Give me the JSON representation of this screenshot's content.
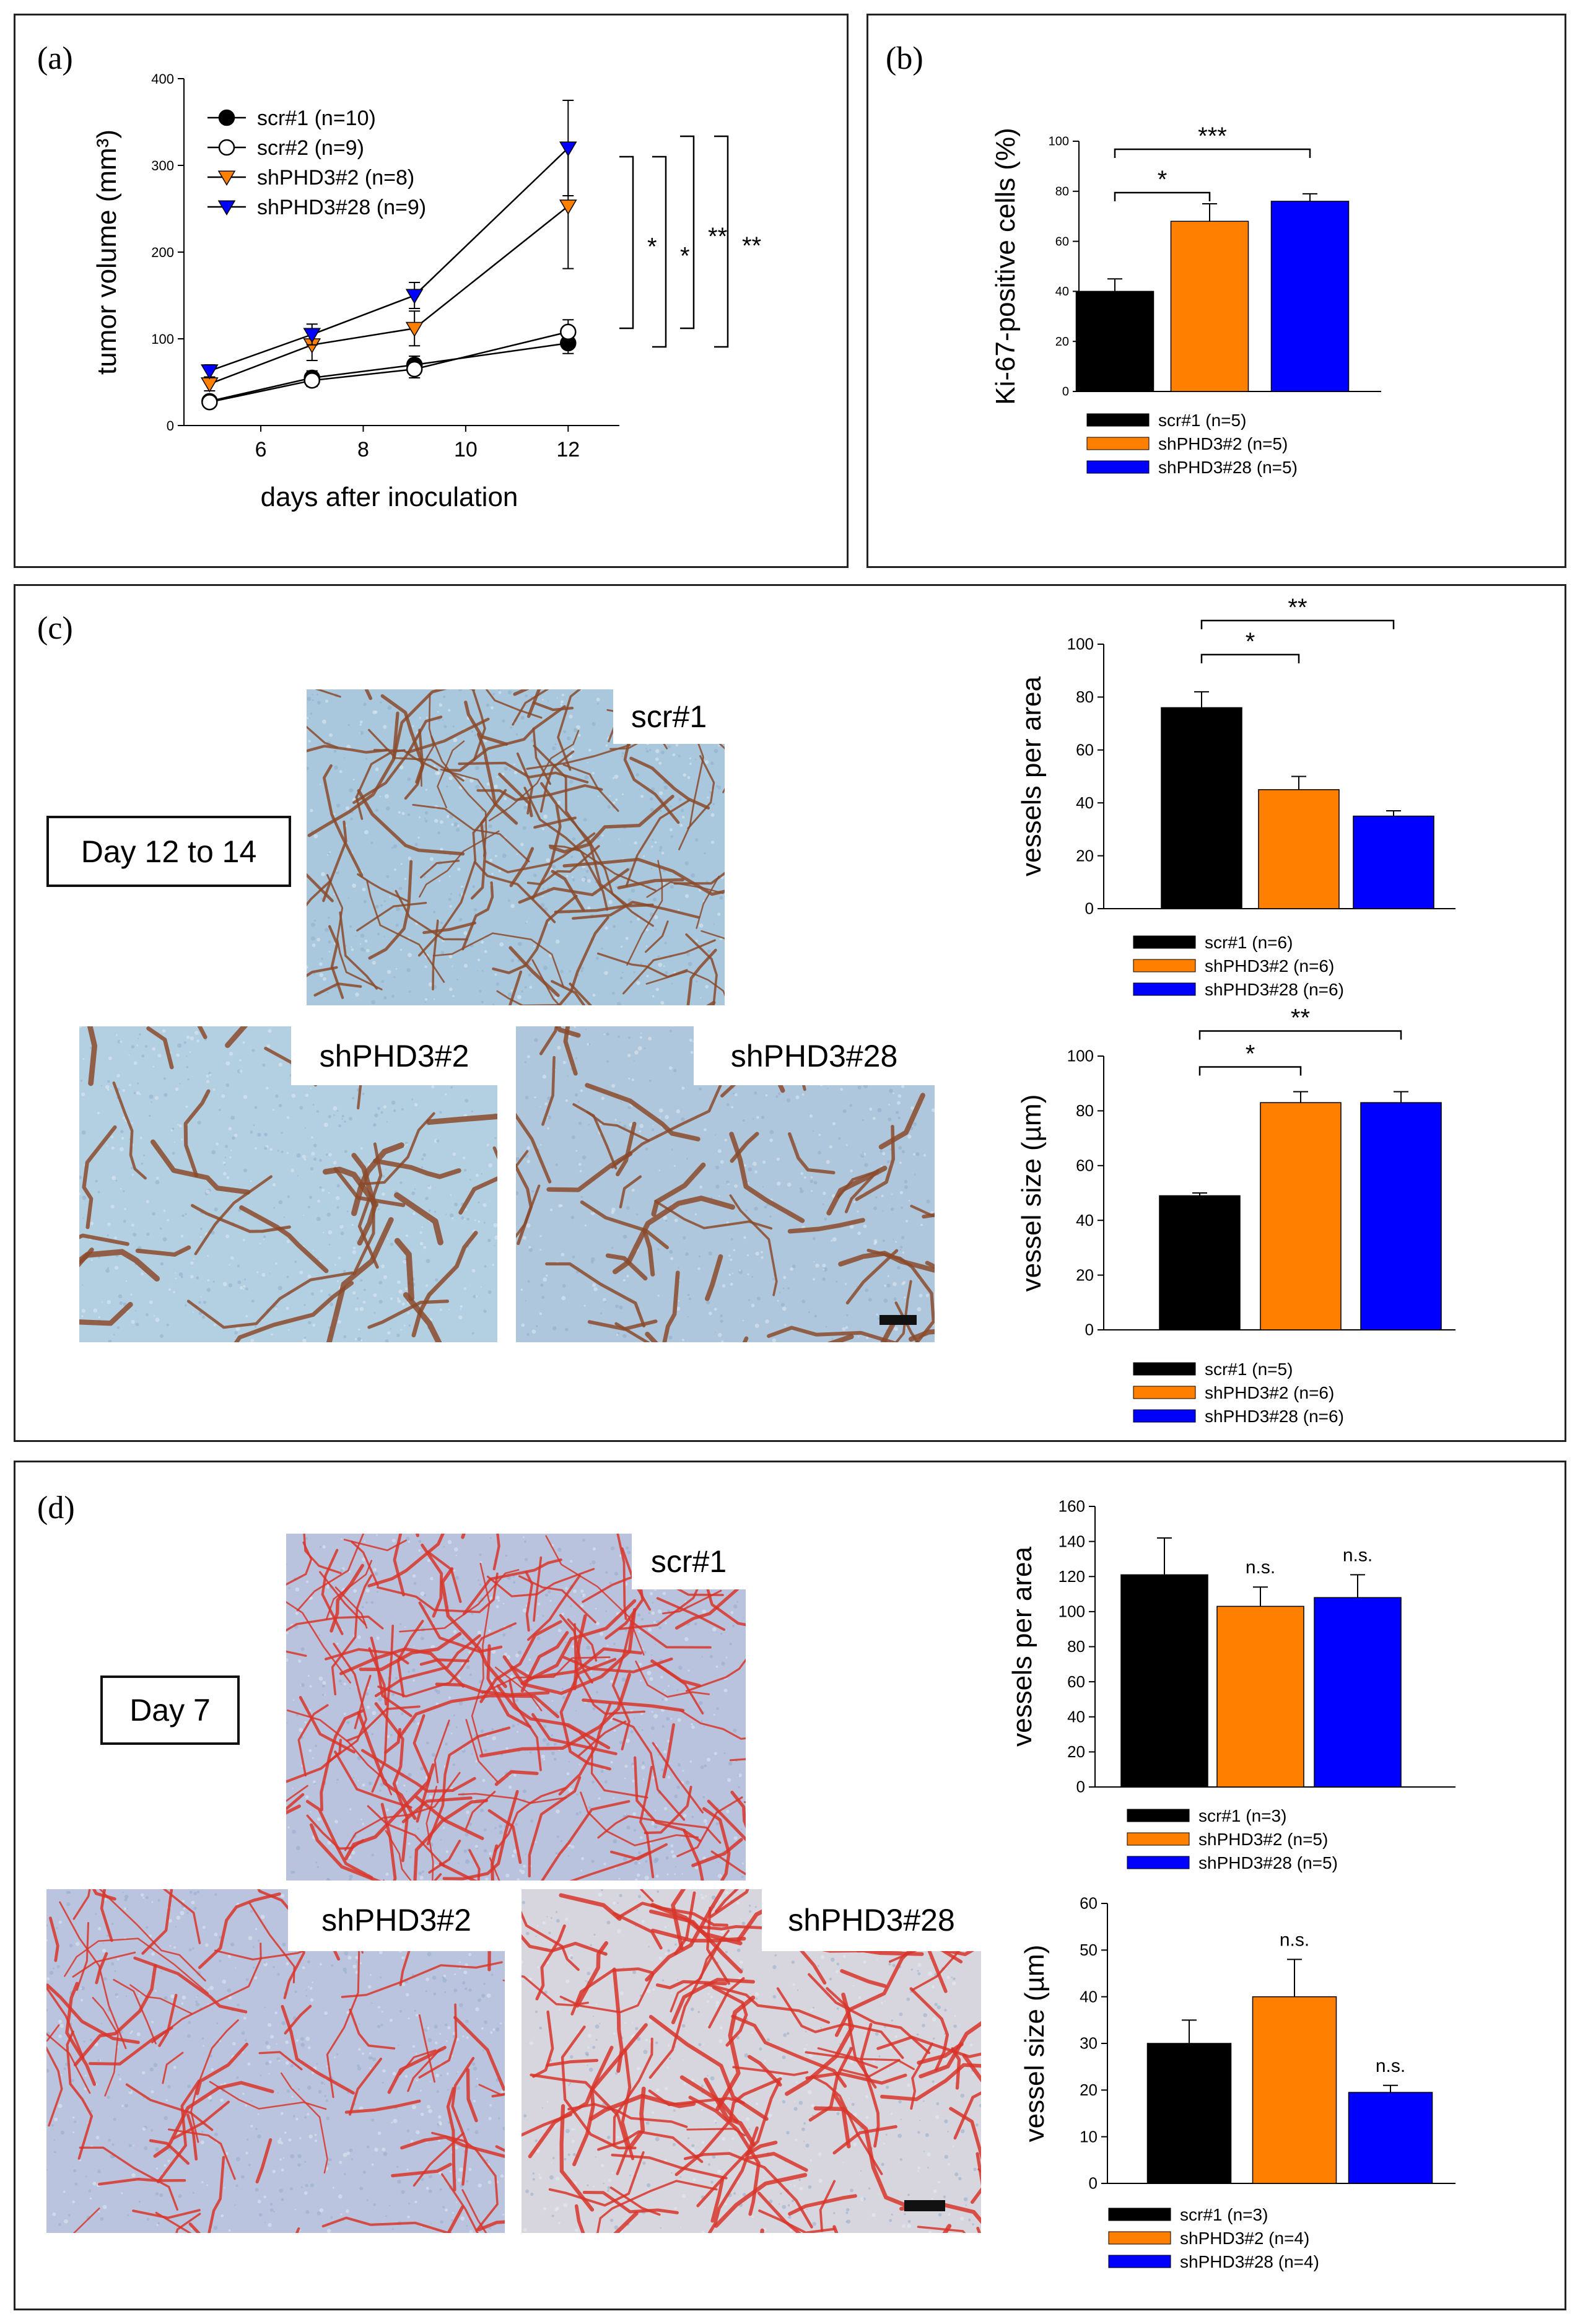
{
  "panels": {
    "a": {
      "label": "(a)"
    },
    "b": {
      "label": "(b)"
    },
    "c": {
      "label": "(c)",
      "day_box": "Day 12 to 14",
      "images": [
        {
          "label": "scr#1"
        },
        {
          "label": "shPHD3#2"
        },
        {
          "label": "shPHD3#28"
        }
      ]
    },
    "d": {
      "label": "(d)",
      "day_box": "Day 7",
      "images": [
        {
          "label": "scr#1"
        },
        {
          "label": "shPHD3#2"
        },
        {
          "label": "shPHD3#28"
        }
      ]
    }
  },
  "colors": {
    "scr1": "#000000",
    "shPHD3_2": "#ff8000",
    "shPHD3_28": "#0000ff",
    "vessel_c": "#8b4a2b",
    "vessel_d": "#d8352a"
  },
  "chart_data": [
    {
      "id": "a",
      "type": "line",
      "xlabel": "days after inoculation",
      "ylabel": "tumor volume (mm³)",
      "xlim": [
        4.5,
        13
      ],
      "ylim": [
        0,
        400
      ],
      "xticks": [
        6,
        8,
        10,
        12
      ],
      "yticks": [
        0,
        100,
        200,
        300,
        400
      ],
      "x": [
        5,
        7,
        9,
        12
      ],
      "series": [
        {
          "name": "scr#1 (n=10)",
          "marker": "filled-circle",
          "values": [
            28,
            55,
            70,
            95
          ],
          "err": [
            5,
            8,
            10,
            12
          ]
        },
        {
          "name": "scr#2 (n=9)",
          "marker": "open-circle",
          "values": [
            27,
            52,
            65,
            108
          ],
          "err": [
            5,
            7,
            10,
            14
          ]
        },
        {
          "name": "shPHD3#2 (n=8)",
          "marker": "orange-triangle",
          "values": [
            48,
            93,
            112,
            253
          ],
          "err": [
            8,
            18,
            20,
            72
          ]
        },
        {
          "name": "shPHD3#28 (n=9)",
          "marker": "blue-triangle",
          "values": [
            63,
            105,
            150,
            320
          ],
          "err": [
            7,
            12,
            15,
            55
          ]
        }
      ],
      "significance": [
        "*",
        "*",
        "**",
        "**"
      ]
    },
    {
      "id": "b",
      "type": "bar",
      "ylabel": "Ki-67-positive cells (%)",
      "ylim": [
        0,
        100
      ],
      "yticks": [
        0,
        20,
        40,
        60,
        80,
        100
      ],
      "categories": [
        "scr#1 (n=5)",
        "shPHD3#2 (n=5)",
        "shPHD3#28 (n=5)"
      ],
      "values": [
        40,
        68,
        76
      ],
      "err": [
        5,
        7,
        3
      ],
      "significance": [
        "*",
        "***"
      ]
    },
    {
      "id": "c1",
      "type": "bar",
      "ylabel": "vessels per area",
      "ylim": [
        0,
        100
      ],
      "yticks": [
        0,
        20,
        40,
        60,
        80,
        100
      ],
      "categories": [
        "scr#1 (n=6)",
        "shPHD3#2 (n=6)",
        "shPHD3#28 (n=6)"
      ],
      "values": [
        76,
        45,
        35
      ],
      "err": [
        6,
        5,
        2
      ],
      "significance": [
        "*",
        "**"
      ]
    },
    {
      "id": "c2",
      "type": "bar",
      "ylabel": "vessel size (µm)",
      "ylim": [
        0,
        100
      ],
      "yticks": [
        0,
        20,
        40,
        60,
        80,
        100
      ],
      "categories": [
        "scr#1 (n=5)",
        "shPHD3#2 (n=6)",
        "shPHD3#28 (n=6)"
      ],
      "values": [
        49,
        83,
        83
      ],
      "err": [
        1,
        4,
        4
      ],
      "significance": [
        "*",
        "**"
      ]
    },
    {
      "id": "d1",
      "type": "bar",
      "ylabel": "vessels per area",
      "ylim": [
        0,
        160
      ],
      "yticks": [
        0,
        20,
        40,
        60,
        80,
        100,
        120,
        140,
        160
      ],
      "categories": [
        "scr#1 (n=3)",
        "shPHD3#2 (n=5)",
        "shPHD3#28 (n=5)"
      ],
      "values": [
        121,
        103,
        108
      ],
      "err": [
        21,
        11,
        13
      ],
      "annotations": [
        "",
        "n.s.",
        "n.s."
      ]
    },
    {
      "id": "d2",
      "type": "bar",
      "ylabel": "vessel size (µm)",
      "ylim": [
        0,
        60
      ],
      "yticks": [
        0,
        10,
        20,
        30,
        40,
        50,
        60
      ],
      "categories": [
        "scr#1 (n=3)",
        "shPHD3#2 (n=4)",
        "shPHD3#28 (n=4)"
      ],
      "values": [
        30,
        40,
        19.5
      ],
      "err": [
        5,
        8,
        1.5
      ],
      "annotations": [
        "",
        "n.s.",
        "n.s."
      ]
    }
  ]
}
